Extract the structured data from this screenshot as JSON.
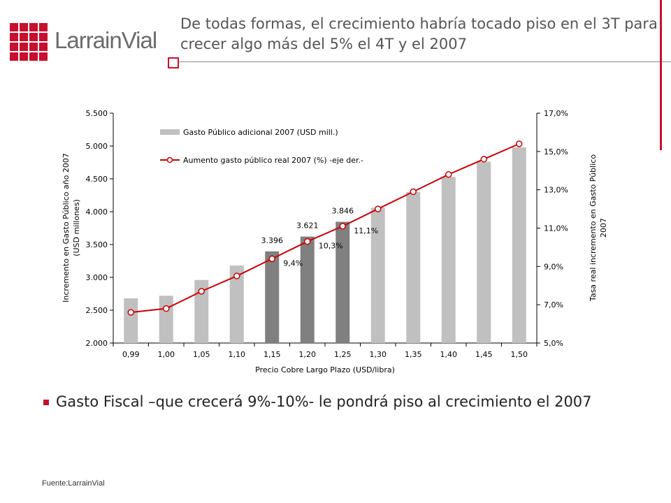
{
  "header": {
    "logo_text": "LarrainVial",
    "title": "De todas formas, el crecimiento habría tocado piso en el 3T para crecer algo más del 5% el 4T y el 2007"
  },
  "colors": {
    "brand_red": "#c8102e",
    "bar_light": "#c0c0c0",
    "bar_dark": "#808080",
    "line": "#cc0000"
  },
  "bullet": {
    "text": "Gasto Fiscal –que crecerá 9%-10%- le pondrá piso al crecimiento el 2007"
  },
  "source": "Fuente:LarrainVial",
  "chart_data": {
    "type": "bar",
    "title": "",
    "xlabel": "Precio Cobre Largo Plazo (USD/libra)",
    "ylabel": "Incremento en Gasto Público año 2007 (USD millones)",
    "ylabel_lines": [
      "Incremento en Gasto Público año 2007",
      "(USD millones)"
    ],
    "y2label": "Tasa real incremento en Gasto Público 2007",
    "y2label_lines": [
      "Tasa real incremento en Gasto Público",
      "2007"
    ],
    "ylim": [
      2000,
      5500
    ],
    "y2lim": [
      5,
      17
    ],
    "yticks": [
      "2.000",
      "2.500",
      "3.000",
      "3.500",
      "4.000",
      "4.500",
      "5.000",
      "5.500"
    ],
    "y2ticks": [
      "5,0%",
      "7,0%",
      "9,0%",
      "11,0%",
      "13,0%",
      "15,0%",
      "17,0%"
    ],
    "categories": [
      "0,99",
      "1,00",
      "1,05",
      "1,10",
      "1,15",
      "1,20",
      "1,25",
      "1,30",
      "1,35",
      "1,40",
      "1,45",
      "1,50"
    ],
    "grid": false,
    "legend_position": "top-left",
    "series": [
      {
        "name": "Gasto Público adicional 2007 (USD mill.)",
        "type": "bar",
        "axis": "left",
        "values": [
          2680,
          2720,
          2960,
          3180,
          3396,
          3621,
          3846,
          4060,
          4300,
          4530,
          4760,
          4980
        ],
        "highlight": [
          false,
          false,
          false,
          false,
          true,
          true,
          true,
          false,
          false,
          false,
          false,
          false
        ]
      },
      {
        "name": "Aumento gasto público real 2007 (%) -eje der.-",
        "type": "line",
        "axis": "right",
        "values": [
          6.6,
          6.8,
          7.7,
          8.5,
          9.4,
          10.3,
          11.1,
          12.0,
          12.9,
          13.8,
          14.6,
          15.4
        ]
      }
    ],
    "annotations": [
      {
        "index": 4,
        "bar_label": "3.396",
        "line_label": "9,4%"
      },
      {
        "index": 5,
        "bar_label": "3.621",
        "line_label": "10,3%"
      },
      {
        "index": 6,
        "bar_label": "3.846",
        "line_label": "11,1%"
      }
    ]
  }
}
